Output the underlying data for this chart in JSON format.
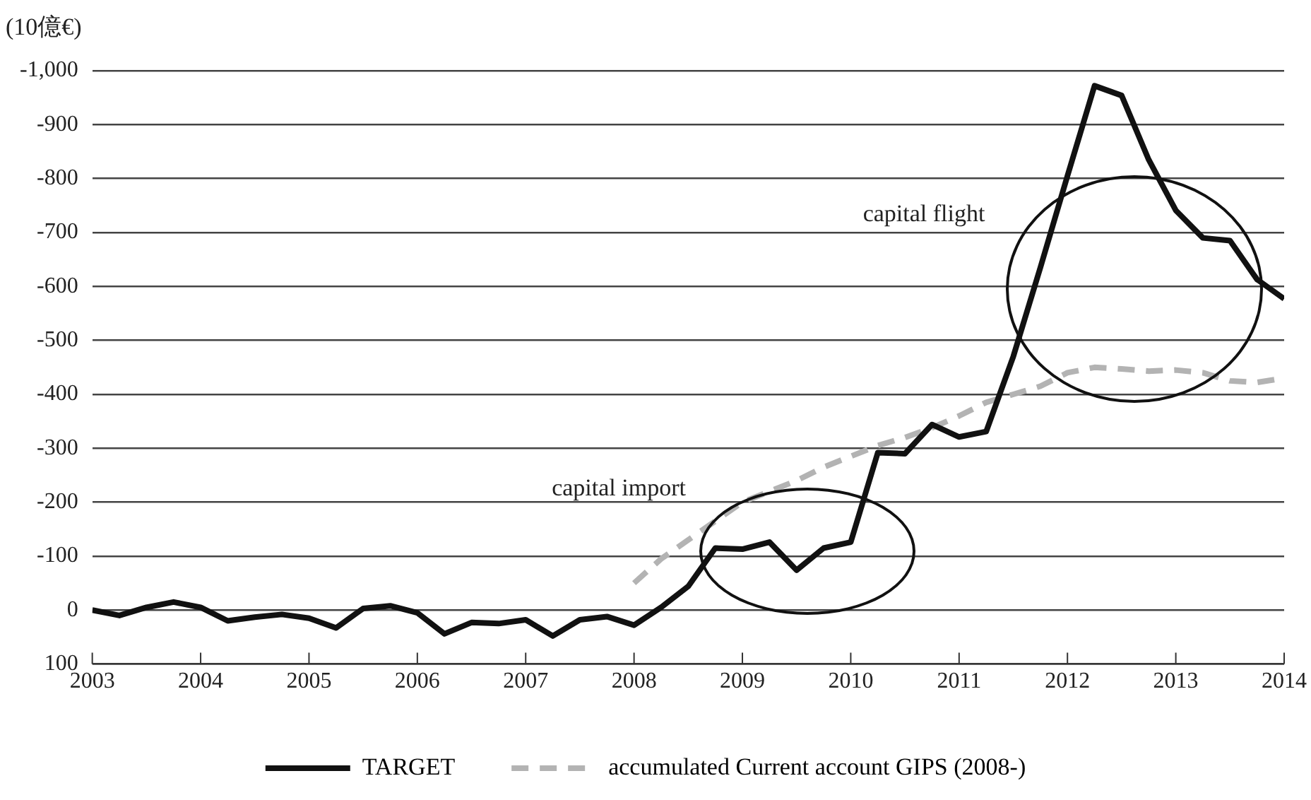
{
  "chart_data": {
    "type": "line",
    "ylabel": "(10億€)",
    "xlim": [
      2003,
      2014
    ],
    "xticks": [
      2003,
      2004,
      2005,
      2006,
      2007,
      2008,
      2009,
      2010,
      2011,
      2012,
      2013,
      2014
    ],
    "ylim": [
      100,
      -1000
    ],
    "yticks": [
      {
        "value": -1000,
        "label": "-1,000"
      },
      {
        "value": -900,
        "label": "-900"
      },
      {
        "value": -800,
        "label": "-800"
      },
      {
        "value": -700,
        "label": "-700"
      },
      {
        "value": -600,
        "label": "-600"
      },
      {
        "value": -500,
        "label": "-500"
      },
      {
        "value": -400,
        "label": "-400"
      },
      {
        "value": -300,
        "label": "-300"
      },
      {
        "value": -200,
        "label": "-200"
      },
      {
        "value": -100,
        "label": "-100"
      },
      {
        "value": 0,
        "label": "0"
      },
      {
        "value": 100,
        "label": "100"
      }
    ],
    "grid": "y",
    "legend": "bottom",
    "marker": "none",
    "series": [
      {
        "name": "TARGET",
        "color": "#111111",
        "line_style": "solid",
        "x": [
          2003,
          2003.25,
          2003.5,
          2003.75,
          2004,
          2004.25,
          2004.5,
          2004.75,
          2005,
          2005.25,
          2005.5,
          2005.75,
          2006,
          2006.25,
          2006.5,
          2006.75,
          2007,
          2007.25,
          2007.5,
          2007.75,
          2008,
          2008.25,
          2008.5,
          2008.75,
          2009,
          2009.25,
          2009.5,
          2009.75,
          2010,
          2010.25,
          2010.5,
          2010.75,
          2011,
          2011.25,
          2011.5,
          2011.75,
          2012,
          2012.25,
          2012.5,
          2012.75,
          2013,
          2013.25,
          2013.5,
          2013.75,
          2014
        ],
        "values": [
          0,
          10,
          -5,
          -15,
          -5,
          20,
          13,
          8,
          15,
          33,
          -3,
          -8,
          5,
          44,
          23,
          25,
          18,
          48,
          18,
          12,
          28,
          -5,
          -44,
          -115,
          -113,
          -126,
          -74,
          -115,
          -126,
          -292,
          -290,
          -344,
          -321,
          -331,
          -470,
          -635,
          -805,
          -972,
          -954,
          -835,
          -741,
          -690,
          -685,
          -613,
          -577
        ]
      },
      {
        "name": "accumulated Current account GIPS (2008-)",
        "color": "#b3b3b3",
        "line_style": "dashed",
        "x": [
          2008,
          2008.25,
          2008.5,
          2008.75,
          2009,
          2009.25,
          2009.5,
          2009.75,
          2010,
          2010.25,
          2010.5,
          2010.75,
          2011,
          2011.25,
          2011.5,
          2011.75,
          2012,
          2012.25,
          2012.5,
          2012.75,
          2013,
          2013.25,
          2013.5,
          2013.75,
          2014
        ],
        "values": [
          -50,
          -95,
          -130,
          -165,
          -200,
          -220,
          -240,
          -265,
          -285,
          -305,
          -320,
          -338,
          -360,
          -385,
          -400,
          -415,
          -440,
          -450,
          -447,
          -443,
          -445,
          -440,
          -425,
          -422,
          -430
        ]
      }
    ],
    "annotations": [
      "capital import",
      "capital flight"
    ]
  }
}
